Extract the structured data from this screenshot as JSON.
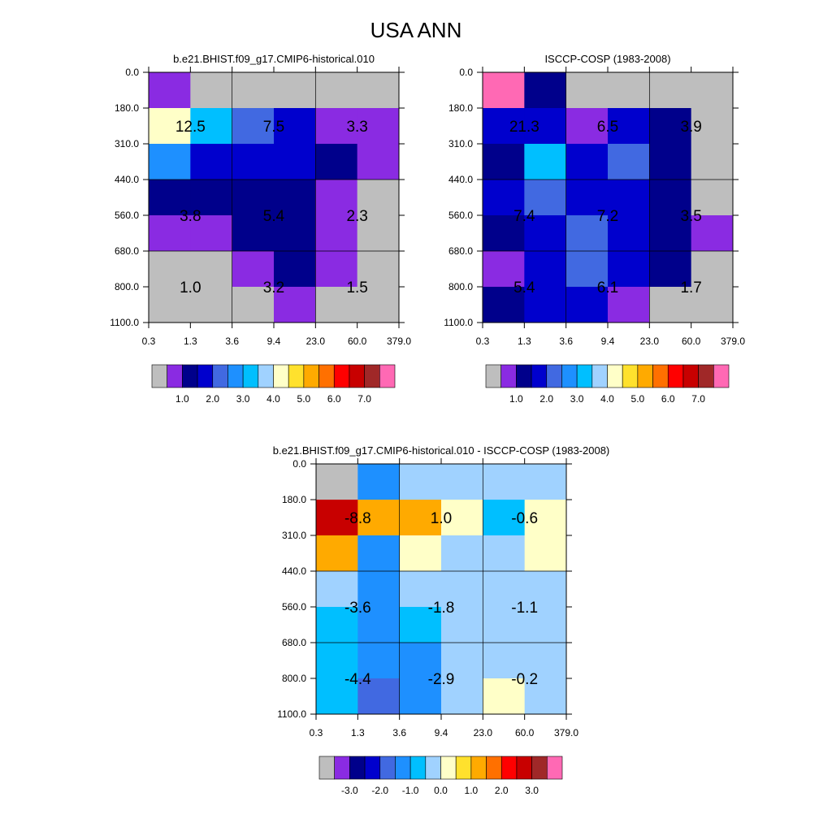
{
  "page": {
    "title": "USA ANN"
  },
  "colors": {
    "missing": "#bebebe",
    "model_palette": [
      "#bebebe",
      "#8a2be2",
      "#00008b",
      "#0000cd",
      "#4169e1",
      "#1e90ff",
      "#00bfff",
      "#a0d2ff",
      "#ffffc8",
      "#ffe12d",
      "#ffaa00",
      "#ff7000",
      "#ff0000",
      "#c80000",
      "#a02828",
      "#ff69b4"
    ],
    "diff_palette": [
      "#bebebe",
      "#8a2be2",
      "#00008b",
      "#0000cd",
      "#4169e1",
      "#1e90ff",
      "#00bfff",
      "#a0d2ff",
      "#ffffc8",
      "#ffe12d",
      "#ffaa00",
      "#ff7000",
      "#ff0000",
      "#c80000",
      "#a02828",
      "#ff69b4"
    ]
  },
  "chart_data": [
    {
      "id": "model",
      "type": "heatmap",
      "title": "b.e21.BHIST.f09_g17.CMIP6-historical.010",
      "xticks": [
        "0.3",
        "1.3",
        "3.6",
        "9.4",
        "23.0",
        "60.0",
        "379.0"
      ],
      "yticks": [
        "0.0",
        "180.0",
        "310.0",
        "440.0",
        "560.0",
        "680.0",
        "800.0",
        "1100.0"
      ],
      "cell_color_index": [
        [
          1,
          0,
          0,
          0,
          0,
          0
        ],
        [
          8,
          6,
          4,
          3,
          1,
          1
        ],
        [
          5,
          3,
          3,
          3,
          2,
          1
        ],
        [
          2,
          2,
          2,
          2,
          1,
          0
        ],
        [
          1,
          1,
          2,
          2,
          1,
          0
        ],
        [
          0,
          0,
          1,
          2,
          1,
          0
        ],
        [
          0,
          0,
          0,
          1,
          0,
          0
        ]
      ],
      "box_values": [
        [
          "12.5",
          "7.5",
          "3.3"
        ],
        [
          "3.8",
          "5.4",
          "2.3"
        ],
        [
          "1.0",
          "3.2",
          "1.5"
        ]
      ],
      "legend_labels": [
        "1.0",
        "2.0",
        "3.0",
        "4.0",
        "5.0",
        "6.0",
        "7.0"
      ]
    },
    {
      "id": "obs",
      "type": "heatmap",
      "title": "ISCCP-COSP (1983-2008)",
      "xticks": [
        "0.3",
        "1.3",
        "3.6",
        "9.4",
        "23.0",
        "60.0",
        "379.0"
      ],
      "yticks": [
        "0.0",
        "180.0",
        "310.0",
        "440.0",
        "560.0",
        "680.0",
        "800.0",
        "1100.0"
      ],
      "cell_color_index": [
        [
          15,
          2,
          0,
          0,
          0,
          0
        ],
        [
          3,
          3,
          1,
          3,
          2,
          0
        ],
        [
          2,
          6,
          3,
          4,
          2,
          0
        ],
        [
          3,
          4,
          3,
          3,
          2,
          0
        ],
        [
          2,
          3,
          4,
          3,
          2,
          1
        ],
        [
          1,
          3,
          4,
          3,
          2,
          0
        ],
        [
          2,
          3,
          3,
          1,
          0,
          0
        ]
      ],
      "box_values": [
        [
          "21.3",
          "6.5",
          "3.9"
        ],
        [
          "7.4",
          "7.2",
          "3.5"
        ],
        [
          "5.4",
          "6.1",
          "1.7"
        ]
      ],
      "legend_labels": [
        "1.0",
        "2.0",
        "3.0",
        "4.0",
        "5.0",
        "6.0",
        "7.0"
      ]
    },
    {
      "id": "diff",
      "type": "heatmap",
      "title": "b.e21.BHIST.f09_g17.CMIP6-historical.010 - ISCCP-COSP (1983-2008)",
      "xticks": [
        "0.3",
        "1.3",
        "3.6",
        "9.4",
        "23.0",
        "60.0",
        "379.0"
      ],
      "yticks": [
        "0.0",
        "180.0",
        "310.0",
        "440.0",
        "560.0",
        "680.0",
        "800.0",
        "1100.0"
      ],
      "cell_color_index": [
        [
          0,
          5,
          7,
          7,
          7,
          7
        ],
        [
          13,
          10,
          10,
          8,
          6,
          8
        ],
        [
          10,
          5,
          8,
          7,
          7,
          8
        ],
        [
          7,
          5,
          7,
          7,
          7,
          7
        ],
        [
          6,
          5,
          6,
          7,
          7,
          7
        ],
        [
          6,
          5,
          5,
          7,
          7,
          7
        ],
        [
          6,
          4,
          5,
          7,
          8,
          7
        ]
      ],
      "box_values": [
        [
          "-8.8",
          "1.0",
          "-0.6"
        ],
        [
          "-3.6",
          "-1.8",
          "-1.1"
        ],
        [
          "-4.4",
          "-2.9",
          "-0.2"
        ]
      ],
      "legend_labels": [
        "-3.0",
        "-2.0",
        "-1.0",
        "0.0",
        "1.0",
        "2.0",
        "3.0"
      ]
    }
  ]
}
